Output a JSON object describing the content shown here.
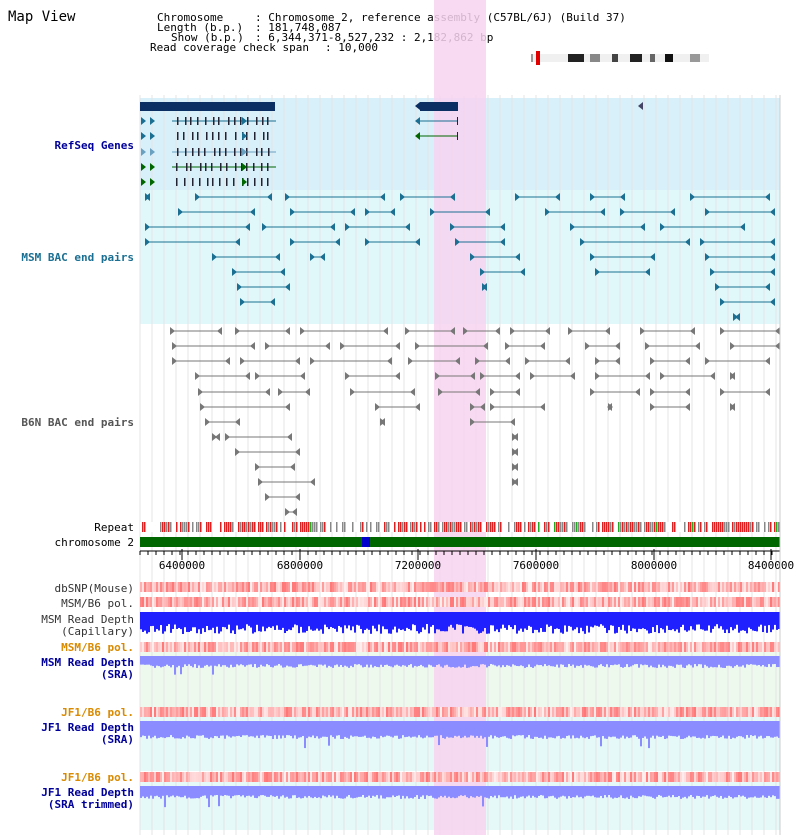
{
  "header": {
    "title": "Map View",
    "chromosome_key": "Chromosome",
    "chromosome_val": ": Chromosome 2, reference assembly (C57BL/6J) (Build 37)",
    "length_key": "Length (b.p.)",
    "length_val": ": 181,748,087",
    "show_key": "Show (b.p.)",
    "show_val": ": 6,344,371-8,527,232 : 2,182,862 bp",
    "coverage_key": "Read coverage check span",
    "coverage_val": ": 10,000"
  },
  "tracks": {
    "refseq": "RefSeq Genes",
    "msm_bac": "MSM BAC end pairs",
    "b6n_bac": "B6N BAC end pairs",
    "repeat": "Repeat",
    "chromosome": "chromosome 2",
    "dbsnp": "dbSNP(Mouse)",
    "msm_b6_pol_1": "MSM/B6 pol.",
    "msm_depth_cap_1": "MSM Read Depth",
    "msm_depth_cap_2": "(Capillary)",
    "msm_b6_pol_2": "MSM/B6 pol.",
    "msm_depth_sra_1": "MSM Read Depth",
    "msm_depth_sra_2": "(SRA)",
    "jf1_b6_pol_1": "JF1/B6 pol.",
    "jf1_depth_sra_1": "JF1 Read Depth",
    "jf1_depth_sra_2": "(SRA)",
    "jf1_b6_pol_2": "JF1/B6 pol.",
    "jf1_depth_trim_1": "JF1 Read Depth",
    "jf1_depth_trim_2": "(SRA trimmed)"
  },
  "axis": {
    "ticks": [
      "6400000",
      "6800000",
      "7200000",
      "7600000",
      "8000000",
      "8400000"
    ]
  },
  "colors": {
    "highlight": "#f7d4f0",
    "refseq_bg": "#d8f0fa",
    "msm_bg": "#e0f8fa",
    "gene_dark": "#0b2e63",
    "msm_feature": "#1a6f92",
    "b6n_feature": "#777777",
    "label_blue": "#000099",
    "label_teal": "#1a6f92",
    "label_orange": "#d98a00",
    "label_gray": "#444444",
    "chrom_green": "#006600",
    "pol_red": "#ff5a5a",
    "depth_blue": "#2020ff",
    "depth_light": "#8a8cff"
  }
}
